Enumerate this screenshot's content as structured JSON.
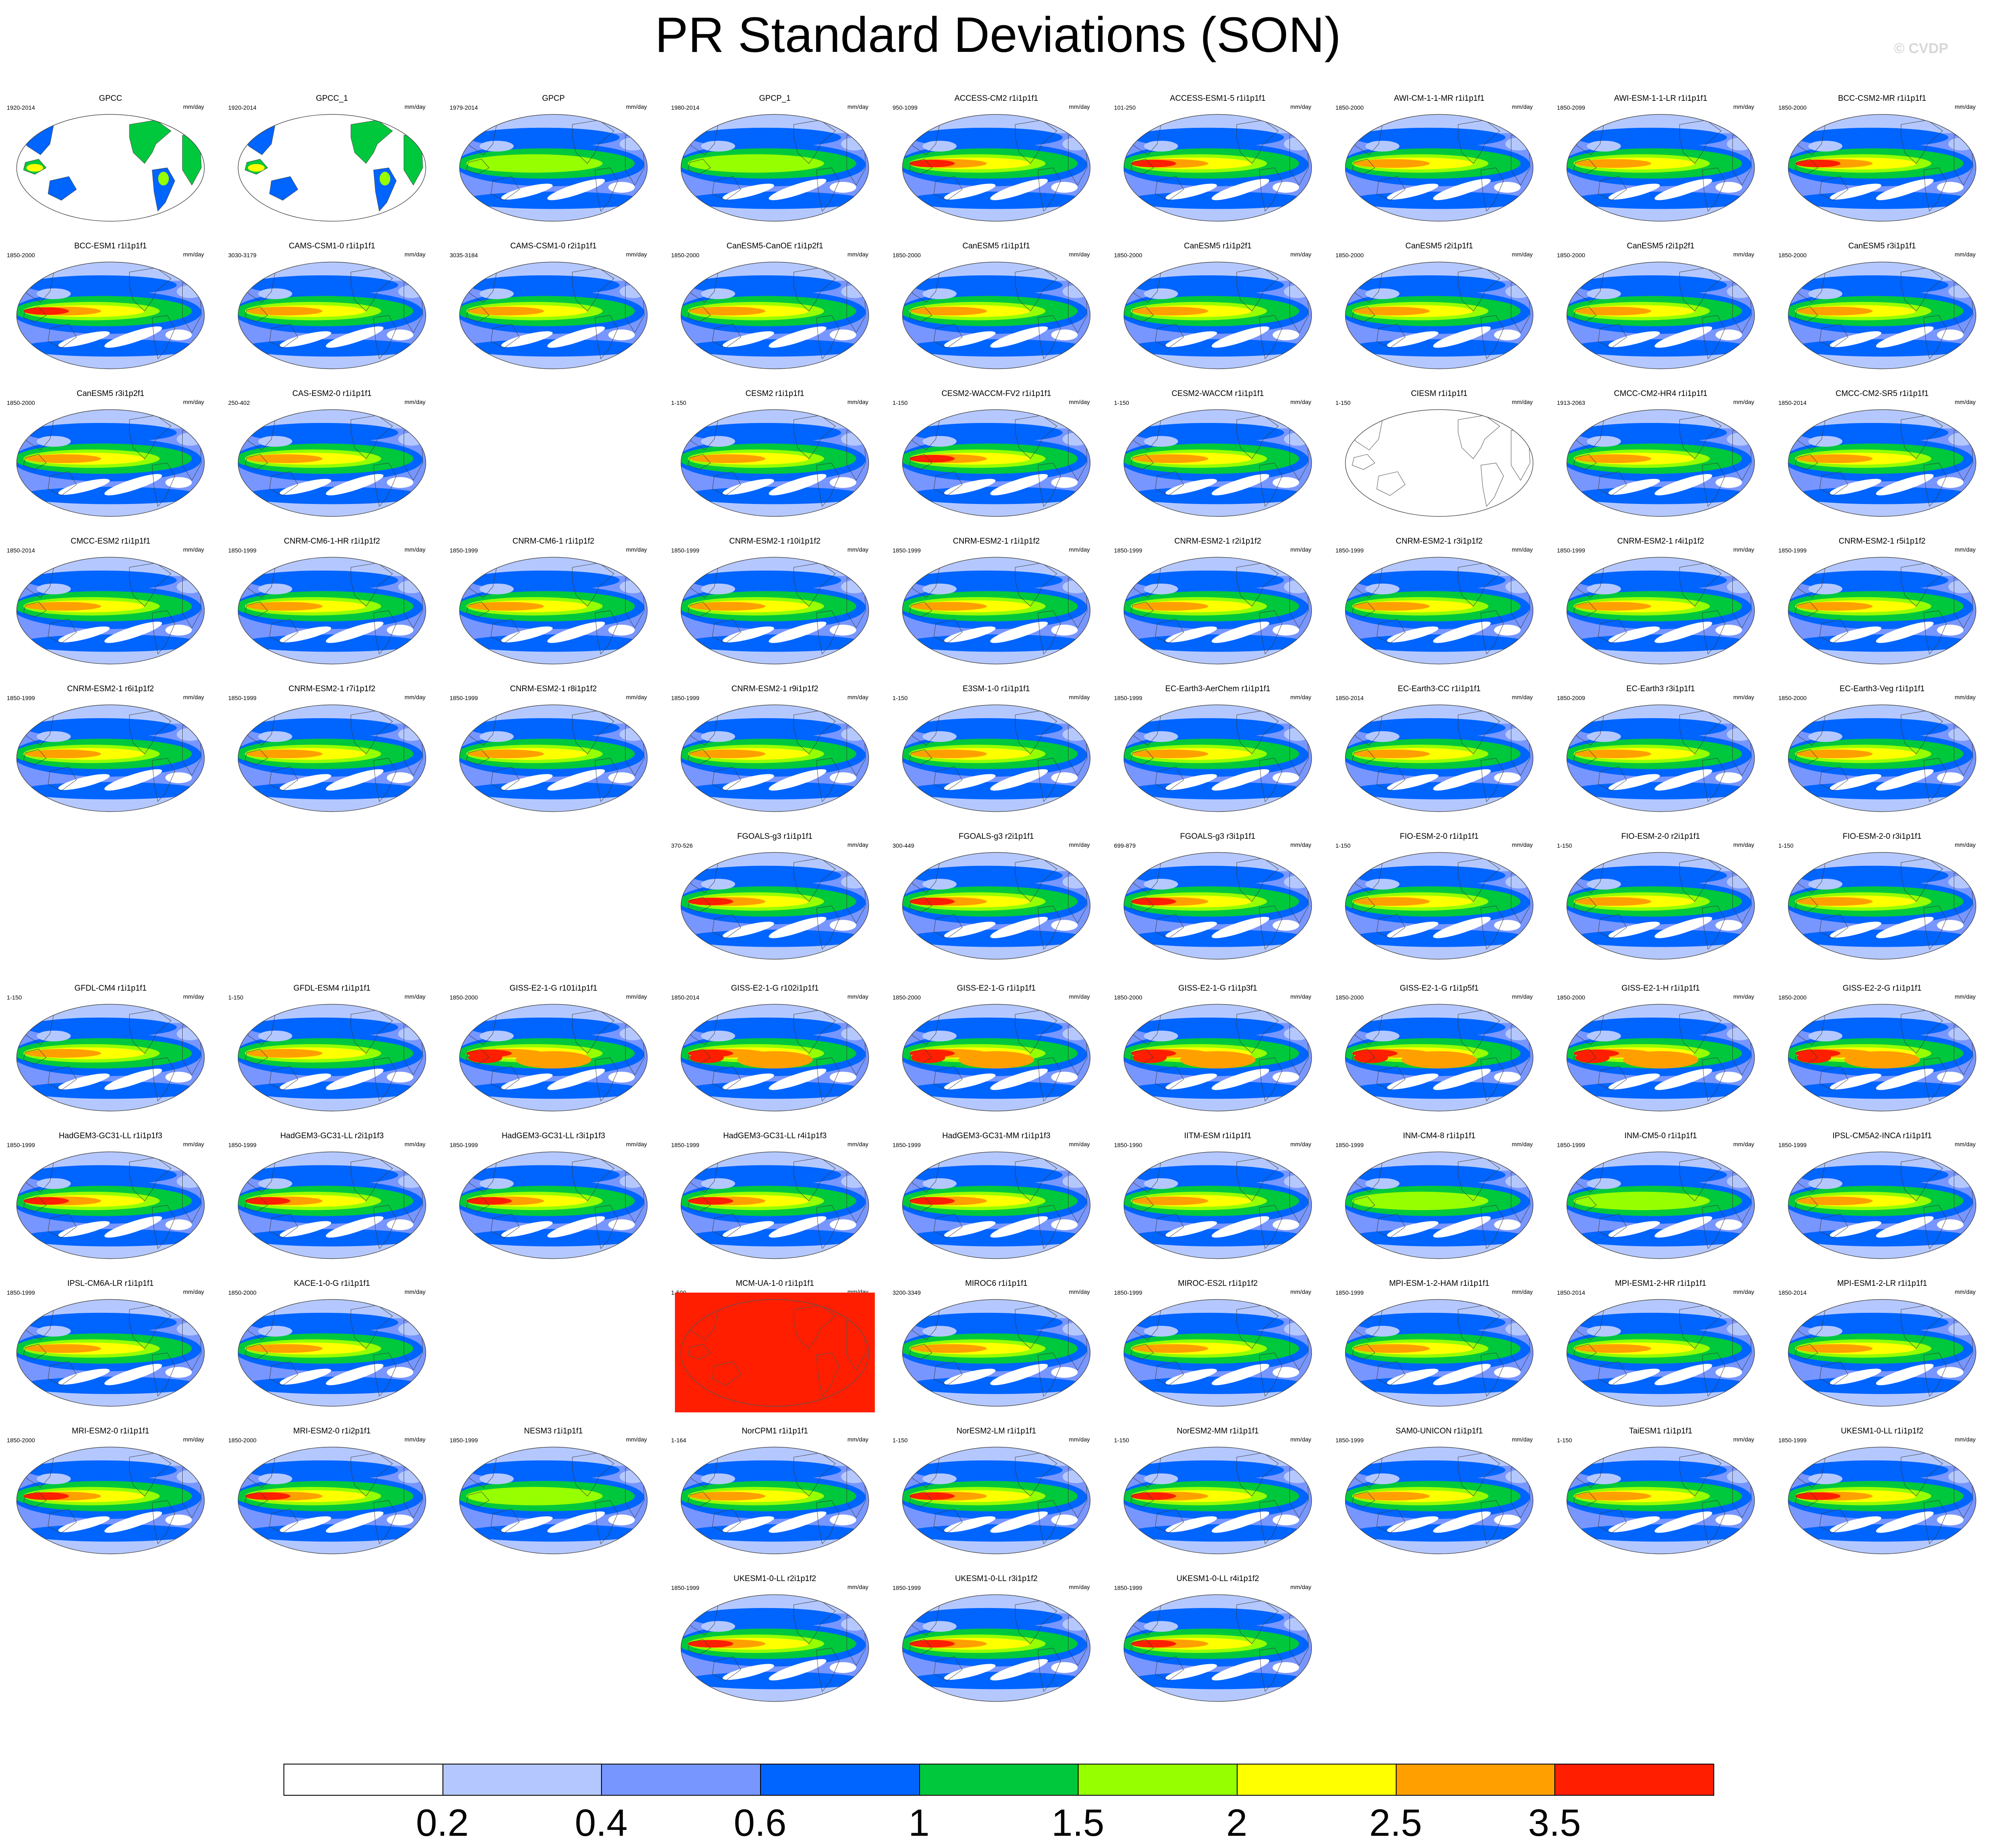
{
  "title": "PR Standard Deviations (SON)",
  "credit": "© CVDP",
  "units": "mm/day",
  "colorbar": {
    "labels": [
      "0.2",
      "0.4",
      "0.6",
      "1",
      "1.5",
      "2",
      "2.5",
      "3.5"
    ],
    "colors": [
      "#ffffff",
      "#b4c8ff",
      "#7896ff",
      "#0064ff",
      "#00c83c",
      "#96ff00",
      "#ffff00",
      "#ffa000",
      "#ff1e00"
    ]
  },
  "panels": [
    {
      "row": 0,
      "col": 0,
      "title": "GPCC",
      "years": "1920-2014",
      "style": "land"
    },
    {
      "row": 0,
      "col": 1,
      "title": "GPCC_1",
      "years": "1920-2014",
      "style": "land"
    },
    {
      "row": 0,
      "col": 2,
      "title": "GPCP",
      "years": "1979-2014",
      "style": "obs"
    },
    {
      "row": 0,
      "col": 3,
      "title": "GPCP_1",
      "years": "1980-2014",
      "style": "obs"
    },
    {
      "row": 0,
      "col": 4,
      "title": "ACCESS-CM2 r1i1p1f1",
      "years": "950-1099",
      "style": "strong"
    },
    {
      "row": 0,
      "col": 5,
      "title": "ACCESS-ESM1-5 r1i1p1f1",
      "years": "101-250",
      "style": "strong"
    },
    {
      "row": 0,
      "col": 6,
      "title": "AWI-CM-1-1-MR r1i1p1f1",
      "years": "1850-2000",
      "style": "model"
    },
    {
      "row": 0,
      "col": 7,
      "title": "AWI-ESM-1-1-LR r1i1p1f1",
      "years": "1850-2099",
      "style": "model"
    },
    {
      "row": 0,
      "col": 8,
      "title": "BCC-CSM2-MR r1i1p1f1",
      "years": "1850-2000",
      "style": "strong"
    },
    {
      "row": 1,
      "col": 0,
      "title": "BCC-ESM1 r1i1p1f1",
      "years": "1850-2000",
      "style": "strong"
    },
    {
      "row": 1,
      "col": 1,
      "title": "CAMS-CSM1-0 r1i1p1f1",
      "years": "3030-3179",
      "style": "model"
    },
    {
      "row": 1,
      "col": 2,
      "title": "CAMS-CSM1-0 r2i1p1f1",
      "years": "3035-3184",
      "style": "model"
    },
    {
      "row": 1,
      "col": 3,
      "title": "CanESM5-CanOE r1i1p2f1",
      "years": "1850-2000",
      "style": "model"
    },
    {
      "row": 1,
      "col": 4,
      "title": "CanESM5 r1i1p1f1",
      "years": "1850-2000",
      "style": "model"
    },
    {
      "row": 1,
      "col": 5,
      "title": "CanESM5 r1i1p2f1",
      "years": "1850-2000",
      "style": "model"
    },
    {
      "row": 1,
      "col": 6,
      "title": "CanESM5 r2i1p1f1",
      "years": "1850-2000",
      "style": "model"
    },
    {
      "row": 1,
      "col": 7,
      "title": "CanESM5 r2i1p2f1",
      "years": "1850-2000",
      "style": "model"
    },
    {
      "row": 1,
      "col": 8,
      "title": "CanESM5 r3i1p1f1",
      "years": "1850-2000",
      "style": "model"
    },
    {
      "row": 2,
      "col": 0,
      "title": "CanESM5 r3i1p2f1",
      "years": "1850-2000",
      "style": "model"
    },
    {
      "row": 2,
      "col": 1,
      "title": "CAS-ESM2-0 r1i1p1f1",
      "years": "250-402",
      "style": "model"
    },
    {
      "row": 2,
      "col": 3,
      "title": "CESM2 r1i1p1f1",
      "years": "1-150",
      "style": "model"
    },
    {
      "row": 2,
      "col": 4,
      "title": "CESM2-WACCM-FV2 r1i1p1f1",
      "years": "1-150",
      "style": "strong"
    },
    {
      "row": 2,
      "col": 5,
      "title": "CESM2-WACCM r1i1p1f1",
      "years": "1-150",
      "style": "model"
    },
    {
      "row": 2,
      "col": 6,
      "title": "CIESM r1i1p1f1",
      "years": "1-150",
      "style": "blank"
    },
    {
      "row": 2,
      "col": 7,
      "title": "CMCC-CM2-HR4 r1i1p1f1",
      "years": "1913-2063",
      "style": "model"
    },
    {
      "row": 2,
      "col": 8,
      "title": "CMCC-CM2-SR5 r1i1p1f1",
      "years": "1850-2014",
      "style": "model"
    },
    {
      "row": 3,
      "col": 0,
      "title": "CMCC-ESM2 r1i1p1f1",
      "years": "1850-2014",
      "style": "model"
    },
    {
      "row": 3,
      "col": 1,
      "title": "CNRM-CM6-1-HR r1i1p1f2",
      "years": "1850-1999",
      "style": "model"
    },
    {
      "row": 3,
      "col": 2,
      "title": "CNRM-CM6-1 r1i1p1f2",
      "years": "1850-1999",
      "style": "model"
    },
    {
      "row": 3,
      "col": 3,
      "title": "CNRM-ESM2-1 r10i1p1f2",
      "years": "1850-1999",
      "style": "model"
    },
    {
      "row": 3,
      "col": 4,
      "title": "CNRM-ESM2-1 r1i1p1f2",
      "years": "1850-1999",
      "style": "model"
    },
    {
      "row": 3,
      "col": 5,
      "title": "CNRM-ESM2-1 r2i1p1f2",
      "years": "1850-1999",
      "style": "model"
    },
    {
      "row": 3,
      "col": 6,
      "title": "CNRM-ESM2-1 r3i1p1f2",
      "years": "1850-1999",
      "style": "model"
    },
    {
      "row": 3,
      "col": 7,
      "title": "CNRM-ESM2-1 r4i1p1f2",
      "years": "1850-1999",
      "style": "model"
    },
    {
      "row": 3,
      "col": 8,
      "title": "CNRM-ESM2-1 r5i1p1f2",
      "years": "1850-1999",
      "style": "model"
    },
    {
      "row": 4,
      "col": 0,
      "title": "CNRM-ESM2-1 r6i1p1f2",
      "years": "1850-1999",
      "style": "model"
    },
    {
      "row": 4,
      "col": 1,
      "title": "CNRM-ESM2-1 r7i1p1f2",
      "years": "1850-1999",
      "style": "model"
    },
    {
      "row": 4,
      "col": 2,
      "title": "CNRM-ESM2-1 r8i1p1f2",
      "years": "1850-1999",
      "style": "model"
    },
    {
      "row": 4,
      "col": 3,
      "title": "CNRM-ESM2-1 r9i1p1f2",
      "years": "1850-1999",
      "style": "model"
    },
    {
      "row": 4,
      "col": 4,
      "title": "E3SM-1-0 r1i1p1f1",
      "years": "1-150",
      "style": "model"
    },
    {
      "row": 4,
      "col": 5,
      "title": "EC-Earth3-AerChem r1i1p1f1",
      "years": "1850-1999",
      "style": "model"
    },
    {
      "row": 4,
      "col": 6,
      "title": "EC-Earth3-CC r1i1p1f1",
      "years": "1850-2014",
      "style": "model"
    },
    {
      "row": 4,
      "col": 7,
      "title": "EC-Earth3 r3i1p1f1",
      "years": "1850-2009",
      "style": "model"
    },
    {
      "row": 4,
      "col": 8,
      "title": "EC-Earth3-Veg r1i1p1f1",
      "years": "1850-2000",
      "style": "model"
    },
    {
      "row": 5,
      "col": 3,
      "title": "FGOALS-g3 r1i1p1f1",
      "years": "370-526",
      "style": "strong"
    },
    {
      "row": 5,
      "col": 4,
      "title": "FGOALS-g3 r2i1p1f1",
      "years": "300-449",
      "style": "strong"
    },
    {
      "row": 5,
      "col": 5,
      "title": "FGOALS-g3 r3i1p1f1",
      "years": "699-879",
      "style": "strong"
    },
    {
      "row": 5,
      "col": 6,
      "title": "FIO-ESM-2-0 r1i1p1f1",
      "years": "1-150",
      "style": "model"
    },
    {
      "row": 5,
      "col": 7,
      "title": "FIO-ESM-2-0 r2i1p1f1",
      "years": "1-150",
      "style": "model"
    },
    {
      "row": 5,
      "col": 8,
      "title": "FIO-ESM-2-0 r3i1p1f1",
      "years": "1-150",
      "style": "model"
    },
    {
      "row": 6,
      "col": 0,
      "title": "GFDL-CM4 r1i1p1f1",
      "years": "1-150",
      "style": "model"
    },
    {
      "row": 6,
      "col": 1,
      "title": "GFDL-ESM4 r1i1p1f1",
      "years": "1-150",
      "style": "model"
    },
    {
      "row": 6,
      "col": 2,
      "title": "GISS-E2-1-G r101i1p1f1",
      "years": "1850-2000",
      "style": "giss"
    },
    {
      "row": 6,
      "col": 3,
      "title": "GISS-E2-1-G r102i1p1f1",
      "years": "1850-2014",
      "style": "giss"
    },
    {
      "row": 6,
      "col": 4,
      "title": "GISS-E2-1-G r1i1p1f1",
      "years": "1850-2000",
      "style": "giss"
    },
    {
      "row": 6,
      "col": 5,
      "title": "GISS-E2-1-G r1i1p3f1",
      "years": "1850-2000",
      "style": "giss"
    },
    {
      "row": 6,
      "col": 6,
      "title": "GISS-E2-1-G r1i1p5f1",
      "years": "1850-2000",
      "style": "giss"
    },
    {
      "row": 6,
      "col": 7,
      "title": "GISS-E2-1-H r1i1p1f1",
      "years": "1850-2000",
      "style": "giss"
    },
    {
      "row": 6,
      "col": 8,
      "title": "GISS-E2-2-G r1i1p1f1",
      "years": "1850-2000",
      "style": "giss"
    },
    {
      "row": 7,
      "col": 0,
      "title": "HadGEM3-GC31-LL r1i1p1f3",
      "years": "1850-1999",
      "style": "strong"
    },
    {
      "row": 7,
      "col": 1,
      "title": "HadGEM3-GC31-LL r2i1p1f3",
      "years": "1850-1999",
      "style": "strong"
    },
    {
      "row": 7,
      "col": 2,
      "title": "HadGEM3-GC31-LL r3i1p1f3",
      "years": "1850-1999",
      "style": "strong"
    },
    {
      "row": 7,
      "col": 3,
      "title": "HadGEM3-GC31-LL r4i1p1f3",
      "years": "1850-1999",
      "style": "strong"
    },
    {
      "row": 7,
      "col": 4,
      "title": "HadGEM3-GC31-MM r1i1p1f3",
      "years": "1850-1999",
      "style": "strong"
    },
    {
      "row": 7,
      "col": 5,
      "title": "IITM-ESM r1i1p1f1",
      "years": "1850-1990",
      "style": "model"
    },
    {
      "row": 7,
      "col": 6,
      "title": "INM-CM4-8 r1i1p1f1",
      "years": "1850-1999",
      "style": "weak"
    },
    {
      "row": 7,
      "col": 7,
      "title": "INM-CM5-0 r1i1p1f1",
      "years": "1850-1999",
      "style": "weak"
    },
    {
      "row": 7,
      "col": 8,
      "title": "IPSL-CM5A2-INCA r1i1p1f1",
      "years": "1850-1999",
      "style": "model"
    },
    {
      "row": 8,
      "col": 0,
      "title": "IPSL-CM6A-LR r1i1p1f1",
      "years": "1850-1999",
      "style": "model"
    },
    {
      "row": 8,
      "col": 1,
      "title": "KACE-1-0-G r1i1p1f1",
      "years": "1850-2000",
      "style": "model"
    },
    {
      "row": 8,
      "col": 3,
      "title": "MCM-UA-1-0 r1i1p1f1",
      "years": "1-500",
      "style": "red"
    },
    {
      "row": 8,
      "col": 4,
      "title": "MIROC6 r1i1p1f1",
      "years": "3200-3349",
      "style": "model"
    },
    {
      "row": 8,
      "col": 5,
      "title": "MIROC-ES2L r1i1p1f2",
      "years": "1850-1999",
      "style": "model"
    },
    {
      "row": 8,
      "col": 6,
      "title": "MPI-ESM-1-2-HAM r1i1p1f1",
      "years": "1850-1999",
      "style": "model"
    },
    {
      "row": 8,
      "col": 7,
      "title": "MPI-ESM1-2-HR r1i1p1f1",
      "years": "1850-2014",
      "style": "model"
    },
    {
      "row": 8,
      "col": 8,
      "title": "MPI-ESM1-2-LR r1i1p1f1",
      "years": "1850-2014",
      "style": "model"
    },
    {
      "row": 9,
      "col": 0,
      "title": "MRI-ESM2-0 r1i1p1f1",
      "years": "1850-2000",
      "style": "strong"
    },
    {
      "row": 9,
      "col": 1,
      "title": "MRI-ESM2-0 r1i2p1f1",
      "years": "1850-2000",
      "style": "strong"
    },
    {
      "row": 9,
      "col": 2,
      "title": "NESM3 r1i1p1f1",
      "years": "1850-1999",
      "style": "weak"
    },
    {
      "row": 9,
      "col": 3,
      "title": "NorCPM1 r1i1p1f1",
      "years": "1-164",
      "style": "model"
    },
    {
      "row": 9,
      "col": 4,
      "title": "NorESM2-LM r1i1p1f1",
      "years": "1-150",
      "style": "strong"
    },
    {
      "row": 9,
      "col": 5,
      "title": "NorESM2-MM r1i1p1f1",
      "years": "1-150",
      "style": "strong"
    },
    {
      "row": 9,
      "col": 6,
      "title": "SAM0-UNICON r1i1p1f1",
      "years": "1850-1999",
      "style": "model"
    },
    {
      "row": 9,
      "col": 7,
      "title": "TaiESM1 r1i1p1f1",
      "years": "1-150",
      "style": "model"
    },
    {
      "row": 9,
      "col": 8,
      "title": "UKESM1-0-LL r1i1p1f2",
      "years": "1850-1999",
      "style": "strong"
    },
    {
      "row": 10,
      "col": 3,
      "title": "UKESM1-0-LL r2i1p1f2",
      "years": "1850-1999",
      "style": "strong"
    },
    {
      "row": 10,
      "col": 4,
      "title": "UKESM1-0-LL r3i1p1f2",
      "years": "1850-1999",
      "style": "strong"
    },
    {
      "row": 10,
      "col": 5,
      "title": "UKESM1-0-LL r4i1p1f2",
      "years": "1850-1999",
      "style": "strong"
    }
  ]
}
